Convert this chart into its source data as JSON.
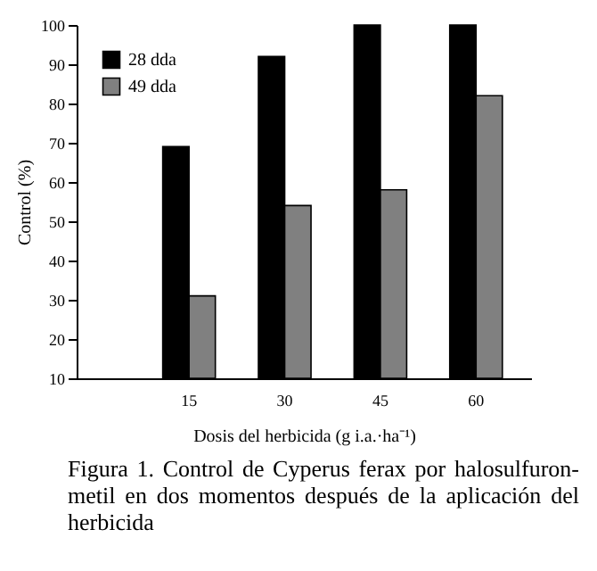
{
  "chart_data": {
    "type": "bar",
    "xlabel": "Dosis del herbicida (g i.a.·ha⁻¹)",
    "ylabel": "Control (%)",
    "categories": [
      "15",
      "30",
      "45",
      "60"
    ],
    "series": [
      {
        "name": "28 dda",
        "color": "#000000",
        "values": [
          69,
          92,
          100,
          100
        ]
      },
      {
        "name": "49 dda",
        "color": "#808080",
        "values": [
          31,
          54,
          58,
          82
        ]
      }
    ],
    "ylim": [
      10,
      100
    ],
    "yticks": [
      10,
      20,
      30,
      40,
      50,
      60,
      70,
      80,
      90,
      100
    ],
    "grid": false,
    "legend": "top left",
    "annotations": [
      "Figura 1. Control de Cyperus ferax por halosulfuron-metil en dos momentos después de la aplicación del herbicida"
    ]
  }
}
